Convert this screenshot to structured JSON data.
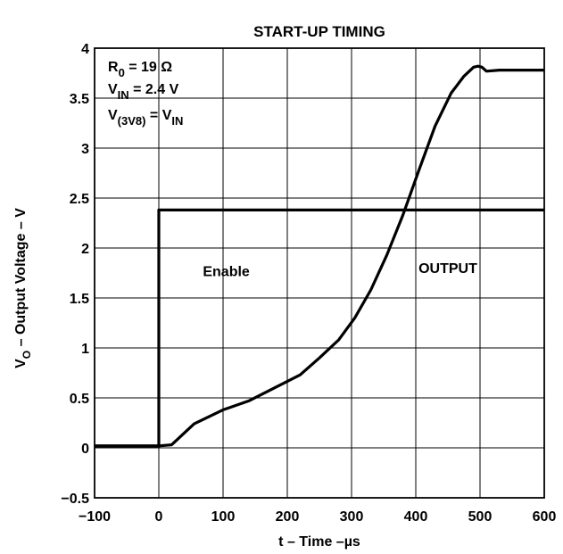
{
  "chart_data": {
    "type": "line",
    "title": "START-UP TIMING",
    "xlabel": "t – Time –µs",
    "ylabel": {
      "main": "V",
      "sub": "O",
      "rest": " – Output Voltage – V"
    },
    "xlim": [
      -100,
      600
    ],
    "ylim": [
      -0.5,
      4
    ],
    "xticks": [
      -100,
      0,
      100,
      200,
      300,
      400,
      500,
      600
    ],
    "xtick_labels": [
      "−100",
      "0",
      "100",
      "200",
      "300",
      "400",
      "500",
      "600"
    ],
    "yticks": [
      -0.5,
      0,
      0.5,
      1,
      1.5,
      2,
      2.5,
      3,
      3.5,
      4
    ],
    "ytick_labels": [
      "−0.5",
      "0",
      "0.5",
      "1",
      "1.5",
      "2",
      "2.5",
      "3",
      "3.5",
      "4"
    ],
    "grid": true,
    "conditions": [
      {
        "main": "R",
        "sub": "0",
        "rest": " = 19 Ω"
      },
      {
        "main": "V",
        "sub": "IN",
        "rest": " = 2.4 V"
      },
      {
        "main": "V",
        "sub": "(3V8)",
        "rest": " = V",
        "sub2": "IN"
      }
    ],
    "series": [
      {
        "name": "Enable",
        "x": [
          -100,
          0,
          0,
          600
        ],
        "y": [
          0.02,
          0.02,
          2.38,
          2.38
        ]
      },
      {
        "name": "OUTPUT",
        "x": [
          -100,
          0,
          20,
          55,
          100,
          140,
          180,
          220,
          250,
          280,
          305,
          330,
          355,
          380,
          405,
          430,
          455,
          475,
          490,
          497,
          503,
          510,
          530,
          560,
          600
        ],
        "y": [
          0.02,
          0.02,
          0.03,
          0.24,
          0.38,
          0.47,
          0.6,
          0.73,
          0.9,
          1.08,
          1.3,
          1.58,
          1.93,
          2.33,
          2.78,
          3.22,
          3.55,
          3.72,
          3.81,
          3.82,
          3.81,
          3.77,
          3.78,
          3.78,
          3.78
        ]
      }
    ],
    "annotations": [
      {
        "text": "Enable",
        "x": 105,
        "y": 1.72
      },
      {
        "text": "OUTPUT",
        "x": 450,
        "y": 1.75
      }
    ]
  }
}
